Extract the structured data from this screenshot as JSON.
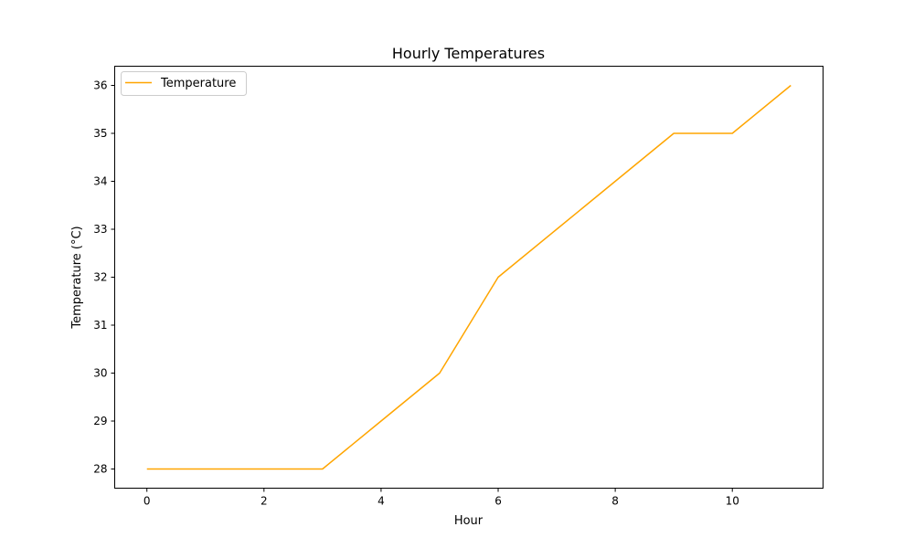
{
  "chart_data": {
    "type": "line",
    "title": "Hourly Temperatures",
    "xlabel": "Hour",
    "ylabel": "Temperature (°C)",
    "x": [
      0,
      1,
      2,
      3,
      4,
      5,
      6,
      7,
      8,
      9,
      10,
      11
    ],
    "series": [
      {
        "name": "Temperature",
        "color": "#FFA500",
        "values": [
          28,
          28,
          28,
          28,
          29,
          30,
          32,
          33,
          34,
          35,
          35,
          36
        ]
      }
    ],
    "xlim": [
      -0.55,
      11.55
    ],
    "ylim": [
      27.6,
      36.4
    ],
    "xticks": [
      0,
      2,
      4,
      6,
      8,
      10
    ],
    "yticks": [
      28,
      29,
      30,
      31,
      32,
      33,
      34,
      35,
      36
    ],
    "grid": false,
    "legend": "upper-left"
  }
}
